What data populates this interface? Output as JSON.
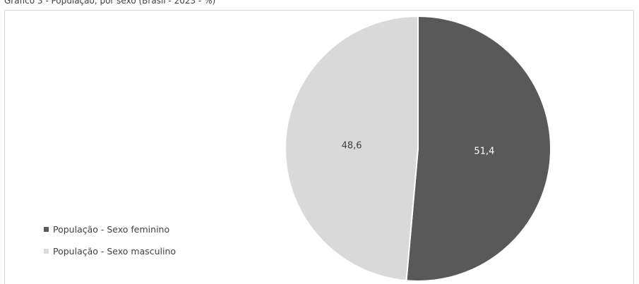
{
  "chart_data": {
    "type": "pie",
    "title": "Gráfico 3 - População, por sexo (Brasil - 2023 - %)",
    "categories": [
      "População - Sexo feminino",
      "População - Sexo masculino"
    ],
    "values": [
      51.4,
      48.6
    ],
    "data_labels": [
      "51,4",
      "48,6"
    ],
    "colors": [
      "#595959",
      "#d9d9d9"
    ],
    "label_colors": [
      "#ffffff",
      "#404040"
    ],
    "legend_position": "left-bottom",
    "legend": [
      {
        "label": "População - Sexo feminino",
        "color": "#595959"
      },
      {
        "label": "População - Sexo masculino",
        "color": "#d9d9d9"
      }
    ]
  }
}
